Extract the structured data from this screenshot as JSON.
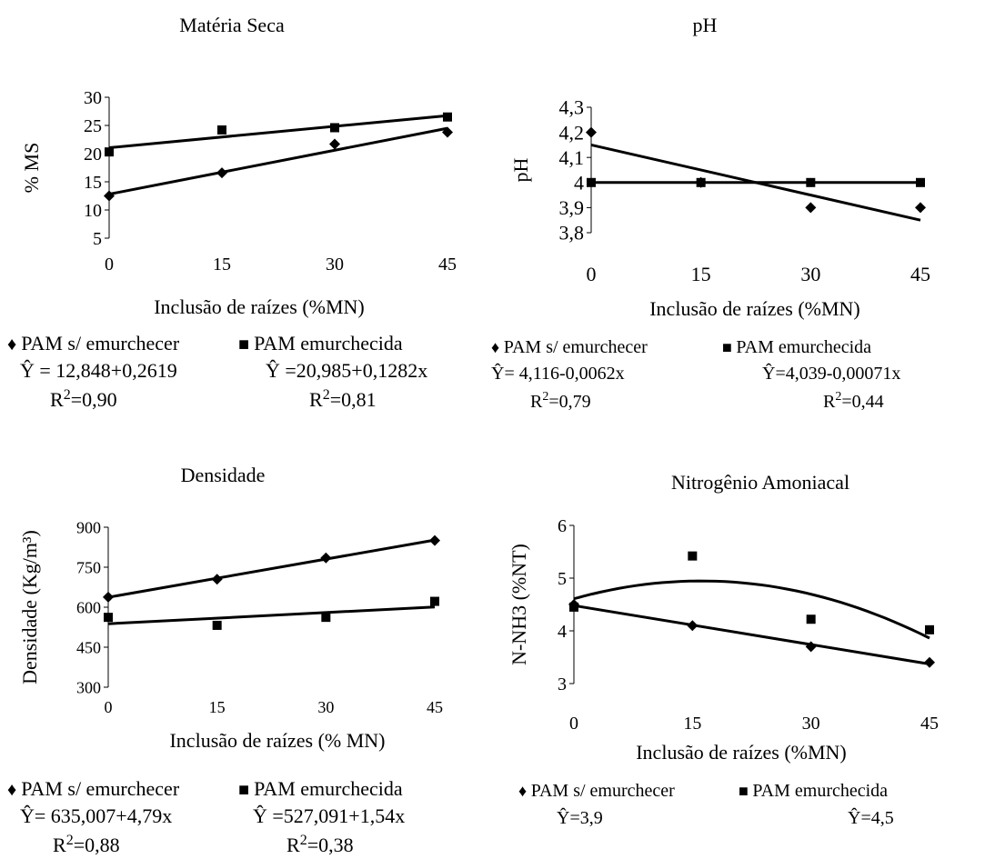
{
  "charts": [
    {
      "type": "scatter",
      "title": "Matéria Seca",
      "xlabel": "Inclusão de raízes (%MN)",
      "ylabel": "% MS",
      "xlim": [
        0,
        45
      ],
      "ylim": [
        5,
        30
      ],
      "xticks": [
        "0",
        "15",
        "30",
        "45"
      ],
      "yticks": [
        "5",
        "10",
        "15",
        "20",
        "25",
        "30"
      ],
      "series": [
        {
          "name": "PAM s/ emurchecer",
          "marker": "diamond",
          "x": [
            0,
            15,
            30,
            45
          ],
          "y": [
            12.5,
            16.6,
            21.7,
            23.8
          ],
          "equation": "Ŷ = 12,848+0,2619",
          "r2": "R²=0,90"
        },
        {
          "name": "PAM emurchecida",
          "marker": "square",
          "x": [
            0,
            15,
            30,
            45
          ],
          "y": [
            20.3,
            24.2,
            24.6,
            26.5
          ],
          "equation": "Ŷ =20,985+0,1282x",
          "r2": "R²=0,81"
        }
      ]
    },
    {
      "type": "scatter",
      "title": "pH",
      "xlabel": "Inclusão de raízes (%MN)",
      "ylabel": "pH",
      "xlim": [
        0,
        45
      ],
      "ylim": [
        3.8,
        4.3
      ],
      "xticks": [
        "0",
        "15",
        "30",
        "45"
      ],
      "yticks": [
        "3,8",
        "3,9",
        "4",
        "4,1",
        "4,2",
        "4,3"
      ],
      "series": [
        {
          "name": "PAM s/ emurchecer",
          "marker": "diamond",
          "x": [
            0,
            15,
            30,
            45
          ],
          "y": [
            4.2,
            4.0,
            3.9,
            3.9
          ],
          "equation": "Ŷ= 4,116-0,0062x",
          "r2": "R²=0,79"
        },
        {
          "name": "PAM emurchecida",
          "marker": "square",
          "x": [
            0,
            15,
            30,
            45
          ],
          "y": [
            4.0,
            4.0,
            4.0,
            4.0
          ],
          "equation": "Ŷ=4,039-0,00071x",
          "r2": "R²=0,44"
        }
      ]
    },
    {
      "type": "scatter",
      "title": "Densidade",
      "xlabel": "Inclusão de raízes (% MN)",
      "ylabel": "Densidade (Kg/m³)",
      "xlim": [
        0,
        45
      ],
      "ylim": [
        300,
        900
      ],
      "xticks": [
        "0",
        "15",
        "30",
        "45"
      ],
      "yticks": [
        "300",
        "450",
        "600",
        "750",
        "900"
      ],
      "series": [
        {
          "name": "PAM s/ emurchecer",
          "marker": "diamond",
          "x": [
            0,
            15,
            30,
            45
          ],
          "y": [
            638,
            705,
            785,
            850
          ],
          "equation": "Ŷ= 635,007+4,79x",
          "r2": "R²=0,88"
        },
        {
          "name": "PAM emurchecida",
          "marker": "square",
          "x": [
            0,
            15,
            30,
            45
          ],
          "y": [
            562,
            532,
            562,
            622
          ],
          "equation": "Ŷ =527,091+1,54x",
          "r2": "R²=0,38"
        }
      ]
    },
    {
      "type": "scatter",
      "title": "Nitrogênio Amoniacal",
      "xlabel": "Inclusão de raízes (%MN)",
      "ylabel": "N-NH3 (%NT)",
      "xlim": [
        0,
        45
      ],
      "ylim": [
        3,
        6
      ],
      "xticks": [
        "0",
        "15",
        "30",
        "45"
      ],
      "yticks": [
        "3",
        "4",
        "5",
        "6"
      ],
      "series": [
        {
          "name": "PAM s/ emurchecer",
          "marker": "diamond",
          "x": [
            0,
            15,
            30,
            45
          ],
          "y": [
            4.5,
            4.1,
            3.7,
            3.4
          ],
          "equation": "Ŷ=3,9",
          "r2": ""
        },
        {
          "name": "PAM emurchecida",
          "marker": "square",
          "x": [
            0,
            15,
            30,
            45
          ],
          "y": [
            4.45,
            5.42,
            4.22,
            4.02
          ],
          "equation": "Ŷ=4,5",
          "r2": ""
        }
      ]
    }
  ]
}
